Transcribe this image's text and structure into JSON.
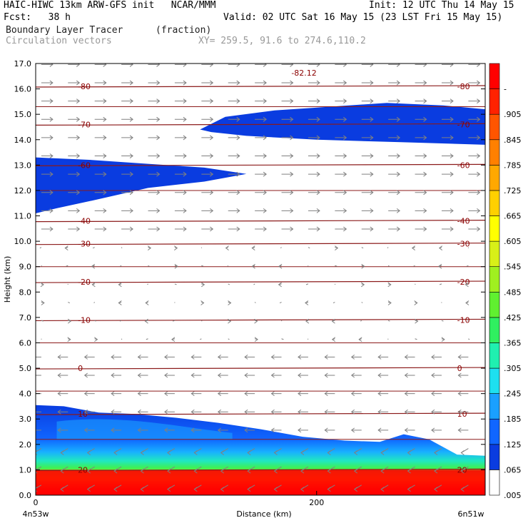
{
  "header": {
    "title_left": "HAIC-HIWC 13km ARW-GFS init   NCAR/MMM",
    "init": "Init: 12 UTC Thu 14 May 15",
    "fcst": "Fcst:   38 h",
    "valid": "Valid: 02 UTC Sat 16 May 15 (23 LST Fri 15 May 15)",
    "field": "Boundary Layer Tracer",
    "units": "(fraction)",
    "overlay": "Circulation vectors",
    "xy": "XY= 259.5, 91.6 to 274.6,110.2"
  },
  "chart_data": {
    "type": "heatmap",
    "ylabel": "Height (km)",
    "xlabel": "Distance (km)",
    "x_start_label": "4n53w",
    "x_end_label": "6n51w",
    "y_ticks": [
      "0.0",
      "1.0",
      "2.0",
      "3.0",
      "4.0",
      "5.0",
      "6.0",
      "7.0",
      "8.0",
      "9.0",
      "10.0",
      "11.0",
      "12.0",
      "13.0",
      "14.0",
      "15.0",
      "16.0",
      "17.0"
    ],
    "ylim": [
      0,
      17
    ],
    "x_ticks": [
      "0",
      "200"
    ],
    "xlim": [
      0,
      320
    ],
    "colorbar_levels": [
      ".005",
      ".065",
      ".125",
      ".185",
      ".245",
      ".305",
      ".365",
      ".425",
      ".485",
      ".545",
      ".605",
      ".665",
      ".725",
      ".785",
      ".845",
      ".905",
      "-"
    ],
    "colorbar_colors": [
      "#ffffff",
      "#0a3ce0",
      "#1066ff",
      "#1aa0ff",
      "#1ee0f0",
      "#20f0b0",
      "#30f060",
      "#60f030",
      "#a0f020",
      "#d8f018",
      "#ffff00",
      "#ffd000",
      "#ffa800",
      "#ff8000",
      "#ff5500",
      "#ff2200",
      "#ff0000"
    ],
    "temperature_contours": [
      {
        "label": "-80",
        "height_km": 16.1
      },
      {
        "label": "-70",
        "height_km": 14.6
      },
      {
        "label": "-60",
        "height_km": 13.0
      },
      {
        "label": "-40",
        "height_km": 10.8
      },
      {
        "label": "-30",
        "height_km": 9.9
      },
      {
        "label": "-20",
        "height_km": 8.4
      },
      {
        "label": "-10",
        "height_km": 6.9
      },
      {
        "label": "0",
        "height_km": 5.0
      },
      {
        "label": "10",
        "height_km": 3.2
      },
      {
        "label": "20",
        "height_km": 1.0
      }
    ],
    "max_label": "-82.12"
  }
}
